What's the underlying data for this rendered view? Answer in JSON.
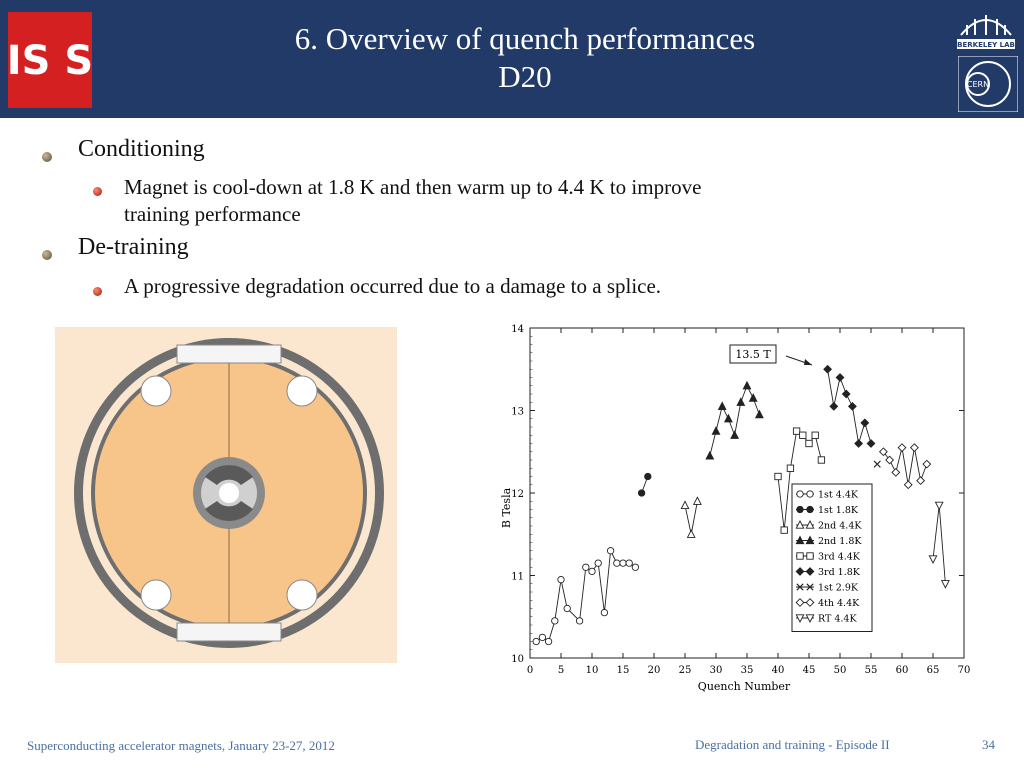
{
  "header": {
    "title_line1": "6. Overview of quench performances",
    "title_line2": "D20"
  },
  "logos": {
    "left_text": "IS S",
    "right_top_text": "BERKELEY LAB",
    "right_bottom_text": "CERN"
  },
  "bullets": [
    {
      "text": "Conditioning",
      "sub": [
        "Magnet is cool-down at 1.8 K and then warm up to 4.4 K to improve",
        "training performance"
      ]
    },
    {
      "text": "De-training",
      "sub": [
        "A progressive degradation occurred due to a damage to a splice."
      ]
    }
  ],
  "footer": {
    "left": "Superconducting accelerator magnets, January 23-27, 2012",
    "center": "Degradation and training - Episode II",
    "page": "34"
  },
  "colors": {
    "header": "#213a68",
    "footer_text": "#4a6fa5",
    "magnet_fill": "#f7c48a",
    "magnet_ring": "#6b6b6b"
  },
  "chart_data": {
    "type": "scatter",
    "xlabel": "Quench Number",
    "ylabel": "B Tesla",
    "xlim": [
      0,
      70
    ],
    "ylim": [
      10,
      14
    ],
    "xticks": [
      0,
      5,
      10,
      15,
      20,
      25,
      30,
      35,
      40,
      45,
      50,
      55,
      60,
      65,
      70
    ],
    "yticks": [
      10,
      11,
      12,
      13,
      14
    ],
    "annotation": "13.5 T",
    "legend_position": "lower-right",
    "series": [
      {
        "name": "1st 4.4K",
        "marker": "circle-open",
        "x": [
          1,
          2,
          3,
          4,
          5,
          6,
          8,
          9,
          10,
          11,
          12,
          13,
          14,
          15,
          16,
          17
        ],
        "y": [
          10.2,
          10.25,
          10.2,
          10.45,
          10.95,
          10.6,
          10.45,
          11.1,
          11.05,
          11.15,
          10.55,
          11.3,
          11.15,
          11.15,
          11.15,
          11.1
        ]
      },
      {
        "name": "1st 1.8K",
        "marker": "circle-filled",
        "x": [
          18,
          19
        ],
        "y": [
          12.0,
          12.2
        ]
      },
      {
        "name": "2nd 4.4K",
        "marker": "triangle-up-open",
        "x": [
          25,
          26,
          27
        ],
        "y": [
          11.85,
          11.5,
          11.9
        ]
      },
      {
        "name": "2nd 1.8K",
        "marker": "triangle-up-filled",
        "x": [
          29,
          30,
          31,
          32,
          33,
          34,
          35,
          36,
          37
        ],
        "y": [
          12.45,
          12.75,
          13.05,
          12.9,
          12.7,
          13.1,
          13.3,
          13.15,
          12.95
        ]
      },
      {
        "name": "3rd 4.4K",
        "marker": "square-open",
        "x": [
          40,
          41,
          42,
          43,
          44,
          45,
          46,
          47
        ],
        "y": [
          12.2,
          11.55,
          12.3,
          12.75,
          12.7,
          12.6,
          12.7,
          12.4
        ]
      },
      {
        "name": "3rd 1.8K",
        "marker": "diamond-filled",
        "x": [
          48,
          49,
          50,
          51,
          52,
          53,
          54,
          55
        ],
        "y": [
          13.5,
          13.05,
          13.4,
          13.2,
          13.05,
          12.6,
          12.85,
          12.6
        ]
      },
      {
        "name": "1st 2.9K",
        "marker": "x",
        "x": [
          56
        ],
        "y": [
          12.35
        ]
      },
      {
        "name": "4th 4.4K",
        "marker": "diamond-open",
        "x": [
          57,
          58,
          59,
          60,
          61,
          62,
          63,
          64
        ],
        "y": [
          12.5,
          12.4,
          12.25,
          12.55,
          12.1,
          12.55,
          12.15,
          12.35
        ]
      },
      {
        "name": "RT 4.4K",
        "marker": "triangle-down-open",
        "x": [
          65,
          66,
          67
        ],
        "y": [
          11.2,
          11.85,
          10.9
        ]
      }
    ]
  }
}
